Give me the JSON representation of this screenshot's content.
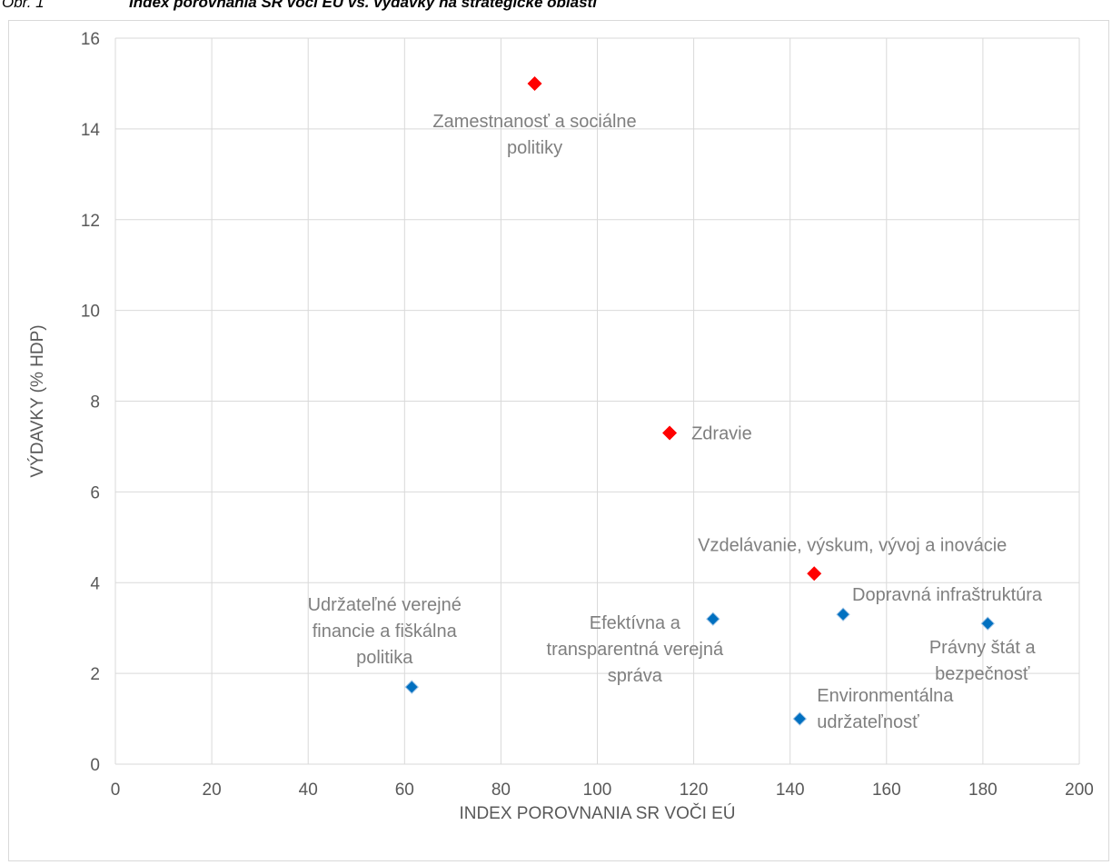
{
  "caption": {
    "number": "Obr. 1",
    "title": "Index porovnania SR voči EÚ vs. výdavky na strategické oblasti"
  },
  "chart_data": {
    "type": "scatter",
    "title": "",
    "xlabel": "INDEX POROVNANIA SR VOČI EÚ",
    "ylabel": "VÝDAVKY (% HDP)",
    "xlim": [
      0,
      200
    ],
    "ylim": [
      0,
      16
    ],
    "x_ticks": [
      0,
      20,
      40,
      60,
      80,
      100,
      120,
      140,
      160,
      180,
      200
    ],
    "y_ticks": [
      0,
      2,
      4,
      6,
      8,
      10,
      12,
      14,
      16
    ],
    "grid": true,
    "legend": "none",
    "colors": {
      "red": "#ff0000",
      "blue": "#0070c0",
      "grid": "#d9d9d9",
      "text": "#595959",
      "label": "#7f7f7f"
    },
    "points": [
      {
        "label": "Zamestnanosť a sociálne politiky",
        "x": 87,
        "y": 15.0,
        "color": "red"
      },
      {
        "label": "Zdravie",
        "x": 115,
        "y": 7.3,
        "color": "red"
      },
      {
        "label": "Vzdelávanie, výskum, vývoj a inovácie",
        "x": 145,
        "y": 4.2,
        "color": "red"
      },
      {
        "label": "Udržateľné verejné financie a fiškálna politika",
        "x": 61.5,
        "y": 1.7,
        "color": "blue"
      },
      {
        "label": "Efektívna a transparentná verejná správa",
        "x": 124,
        "y": 3.2,
        "color": "blue"
      },
      {
        "label": "Dopravná infraštruktúra",
        "x": 151,
        "y": 3.3,
        "color": "blue"
      },
      {
        "label": "Environmentálna udržateľnosť",
        "x": 142,
        "y": 1.0,
        "color": "blue"
      },
      {
        "label": "Právny štát a bezpečnosť",
        "x": 181,
        "y": 3.1,
        "color": "blue"
      }
    ]
  }
}
